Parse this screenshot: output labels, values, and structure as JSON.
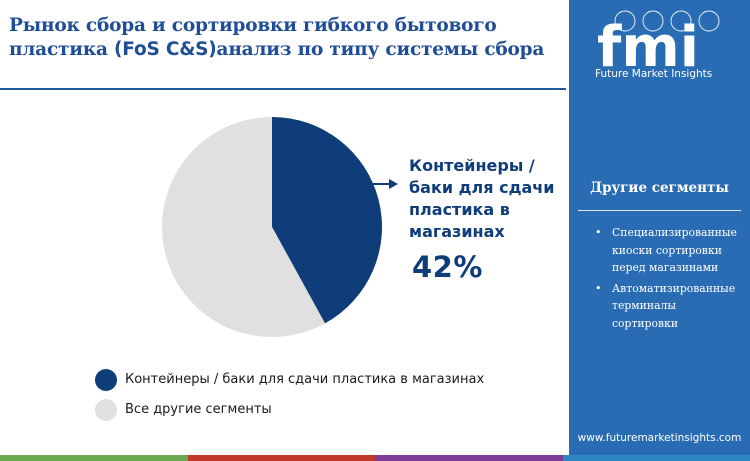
{
  "title": {
    "line1": "Рынок сбора и сортировки гибкого бытового",
    "line2_a": "пластика ",
    "line2_b": "(FoS C&S)",
    "line2_c": "анализ по типу системы сбора"
  },
  "chart_data": {
    "type": "pie",
    "slices": [
      {
        "label": "Контейнеры / баки для сдачи пластика в магазинах",
        "value": 42,
        "color": "#0e3d7a"
      },
      {
        "label": "Все другие сегменты",
        "value": 58,
        "color": "#e0e0e0"
      }
    ],
    "callout": {
      "label": "Контейнеры / баки для сдачи пластика в магазинах",
      "value_text": "42%"
    }
  },
  "legend": [
    {
      "label": "Контейнеры / баки для сдачи пластика в магазинах",
      "color": "#0e3d7a"
    },
    {
      "label": "Все другие сегменты",
      "color": "#e0e0e0"
    }
  ],
  "sidebar": {
    "brand": "fmi",
    "tagline": "Future Market Insights",
    "heading": "Другие сегменты",
    "items": [
      {
        "text": "Специализированные киоски сортировки перед магазинами"
      },
      {
        "text": "Автоматизированные терминалы сортировки"
      }
    ],
    "website": "www.futuremarketinsights.com",
    "accent": "#2a6cb4"
  },
  "bottom_bar_colors": [
    "#6aa84f",
    "#c0392b",
    "#7d3c98",
    "#2e86c1"
  ]
}
